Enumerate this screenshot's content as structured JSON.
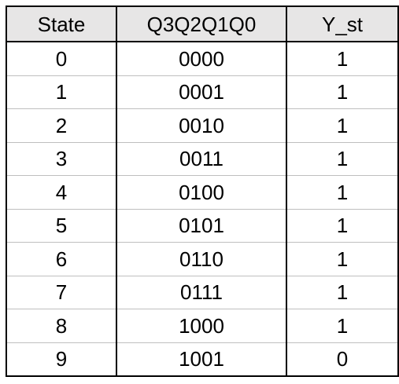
{
  "table": {
    "headers": [
      "State",
      "Q3Q2Q1Q0",
      "Y_st"
    ],
    "rows": [
      [
        "0",
        "0000",
        "1"
      ],
      [
        "1",
        "0001",
        "1"
      ],
      [
        "2",
        "0010",
        "1"
      ],
      [
        "3",
        "0011",
        "1"
      ],
      [
        "4",
        "0100",
        "1"
      ],
      [
        "5",
        "0101",
        "1"
      ],
      [
        "6",
        "0110",
        "1"
      ],
      [
        "7",
        "0111",
        "1"
      ],
      [
        "8",
        "1000",
        "1"
      ],
      [
        "9",
        "1001",
        "0"
      ]
    ]
  },
  "colors": {
    "header_bg": "#e7e6e6",
    "border": "#000000",
    "row_divider": "#bfbfbf"
  }
}
